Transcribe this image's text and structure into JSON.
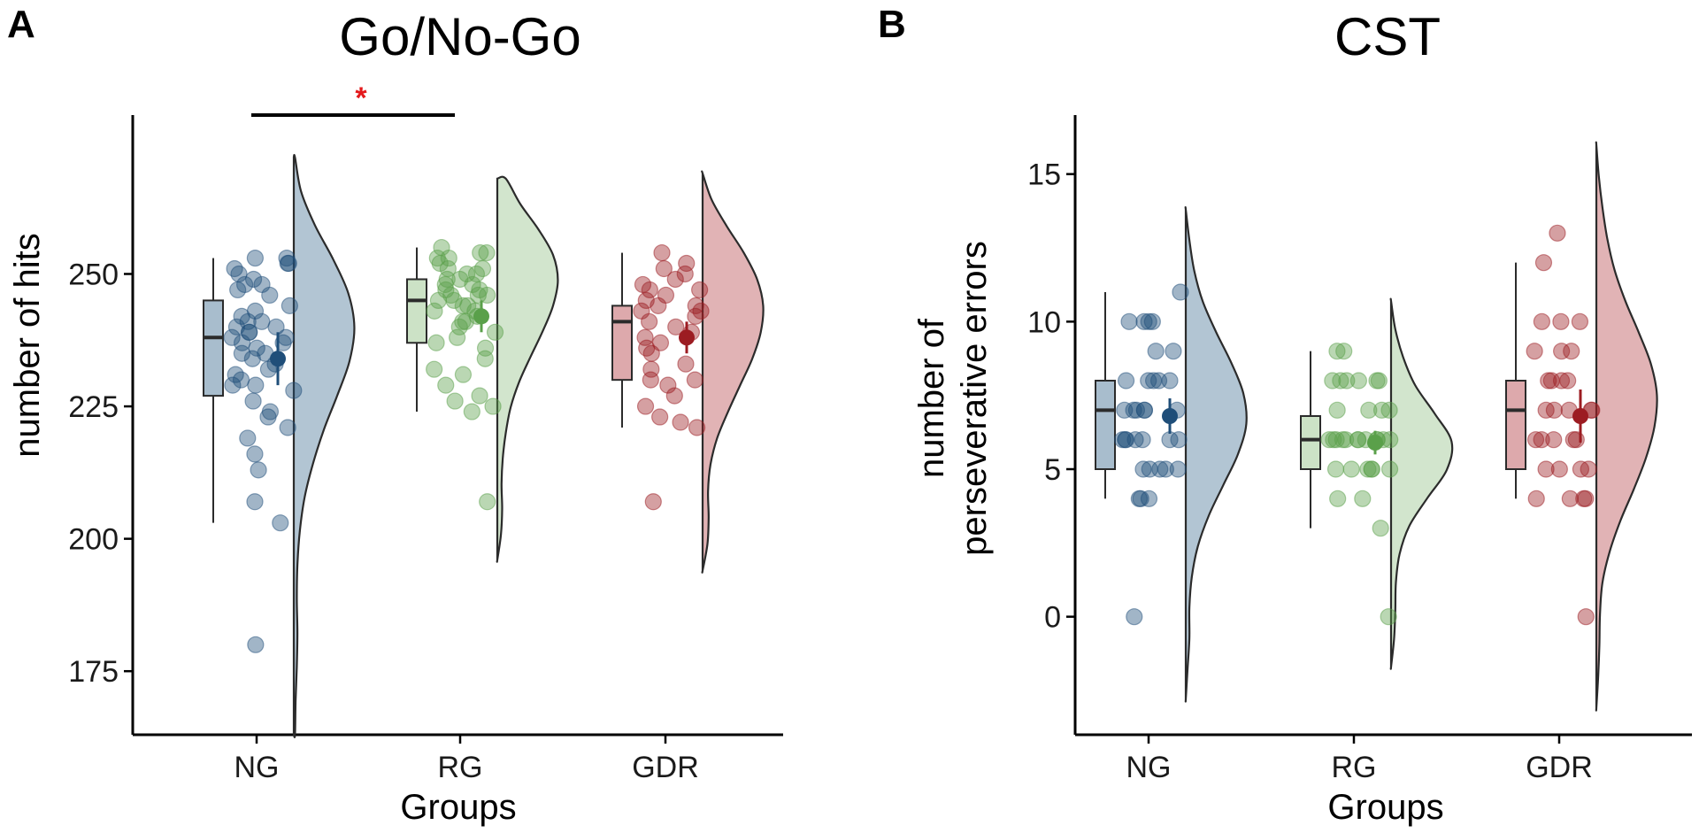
{
  "figure": {
    "panels": [
      {
        "letter": "A",
        "title": "Go/No-Go",
        "ylabel": "number of hits",
        "xlabel": "Groups"
      },
      {
        "letter": "B",
        "title": "CST",
        "ylabel_line1": "number of",
        "ylabel_line2": "perseverative errors",
        "xlabel": "Groups"
      }
    ],
    "significance_marker": "*",
    "colors": {
      "NG": "#1f4e79",
      "RG": "#5aa04a",
      "GDR": "#9c1c22",
      "NG_fill": "#9fb6c8",
      "RG_fill": "#c7dfc0",
      "GDR_fill": "#d9a0a3",
      "significance": "#e41a1c"
    }
  },
  "chart_data": [
    {
      "type": "raincloud",
      "title": "Go/No-Go",
      "xlabel": "Groups",
      "ylabel": "number of hits",
      "categories": [
        "NG",
        "RG",
        "GDR"
      ],
      "ylim": [
        163,
        280
      ],
      "yticks": [
        175,
        200,
        225,
        250
      ],
      "significance": {
        "between": [
          "NG",
          "RG"
        ],
        "label": "*"
      },
      "groups": [
        {
          "name": "NG",
          "box": {
            "min": 203,
            "q1": 227,
            "median": 238,
            "q3": 245,
            "max": 253
          },
          "mean": 234,
          "ci": [
            229,
            239
          ],
          "points": [
            253,
            252,
            251,
            253,
            252,
            250,
            249,
            248,
            246,
            248,
            247,
            244,
            243,
            242,
            241,
            241,
            240,
            240,
            239,
            239,
            238,
            238,
            237,
            237,
            236,
            235,
            235,
            234,
            233,
            232,
            231,
            230,
            229,
            229,
            228,
            226,
            224,
            223,
            221,
            219,
            216,
            213,
            207,
            203,
            180
          ],
          "density_range": [
            163,
            272
          ],
          "density": [
            0.02,
            0.03,
            0.05,
            0.06,
            0.05,
            0.06,
            0.1,
            0.18,
            0.32,
            0.5,
            0.72,
            0.92,
            1.0,
            0.9,
            0.65,
            0.35,
            0.12,
            0.02
          ]
        },
        {
          "name": "RG",
          "box": {
            "min": 224,
            "q1": 237,
            "median": 245,
            "q3": 249,
            "max": 255
          },
          "mean": 242,
          "ci": [
            239,
            245
          ],
          "points": [
            255,
            254,
            254,
            253,
            253,
            252,
            251,
            251,
            250,
            250,
            249,
            249,
            248,
            248,
            247,
            247,
            246,
            246,
            246,
            245,
            245,
            244,
            244,
            243,
            243,
            242,
            241,
            241,
            240,
            239,
            238,
            237,
            236,
            234,
            232,
            231,
            229,
            227,
            226,
            225,
            224,
            207
          ],
          "density_range": [
            196,
            268
          ],
          "density": [
            0.0,
            0.06,
            0.08,
            0.07,
            0.09,
            0.14,
            0.22,
            0.36,
            0.55,
            0.75,
            0.92,
            1.0,
            0.92,
            0.68,
            0.38,
            0.14
          ]
        },
        {
          "name": "GDR",
          "box": {
            "min": 221,
            "q1": 230,
            "median": 241,
            "q3": 244,
            "max": 254
          },
          "mean": 238,
          "ci": [
            235,
            241
          ],
          "points": [
            254,
            252,
            251,
            250,
            249,
            248,
            247,
            247,
            246,
            245,
            244,
            244,
            243,
            243,
            242,
            241,
            240,
            239,
            238,
            237,
            236,
            235,
            233,
            232,
            230,
            230,
            229,
            227,
            225,
            223,
            222,
            221,
            207
          ],
          "density_range": [
            194,
            269
          ],
          "density": [
            0.0,
            0.08,
            0.1,
            0.09,
            0.13,
            0.24,
            0.42,
            0.62,
            0.82,
            0.96,
            1.0,
            0.9,
            0.68,
            0.4,
            0.15,
            0.0
          ]
        }
      ]
    },
    {
      "type": "raincloud",
      "title": "CST",
      "xlabel": "Groups",
      "ylabel": "number of perseverative errors",
      "categories": [
        "NG",
        "RG",
        "GDR"
      ],
      "ylim": [
        -4,
        17
      ],
      "yticks": [
        0,
        5,
        10,
        15
      ],
      "groups": [
        {
          "name": "NG",
          "box": {
            "min": 4,
            "q1": 5,
            "median": 7,
            "q3": 8,
            "max": 11
          },
          "mean": 6.8,
          "ci": [
            6.2,
            7.4
          ],
          "points": [
            11,
            10,
            10,
            10,
            10,
            9,
            9,
            8,
            8,
            8,
            8,
            8,
            7,
            7,
            7,
            7,
            7,
            7,
            6,
            6,
            6,
            6,
            6,
            6,
            6,
            5,
            5,
            5,
            5,
            5,
            4,
            4,
            4,
            0
          ],
          "density_range": [
            -2.8,
            13.8
          ],
          "density": [
            0.0,
            0.03,
            0.06,
            0.06,
            0.1,
            0.2,
            0.38,
            0.62,
            0.86,
            1.0,
            0.95,
            0.75,
            0.5,
            0.28,
            0.14,
            0.06,
            0.0
          ]
        },
        {
          "name": "RG",
          "box": {
            "min": 3,
            "q1": 5,
            "median": 6,
            "q3": 6.8,
            "max": 9
          },
          "mean": 5.9,
          "ci": [
            5.5,
            6.3
          ],
          "points": [
            9,
            9,
            8,
            8,
            8,
            8,
            8,
            8,
            7,
            7,
            7,
            7,
            6,
            6,
            6,
            6,
            6,
            6,
            6,
            6,
            6,
            6,
            6,
            6,
            5,
            5,
            5,
            5,
            5,
            5,
            4,
            4,
            3,
            0
          ],
          "density_range": [
            -1.7,
            10.7
          ],
          "density": [
            0.0,
            0.05,
            0.07,
            0.08,
            0.14,
            0.3,
            0.6,
            0.92,
            1.0,
            0.72,
            0.4,
            0.2,
            0.07,
            0.0
          ]
        },
        {
          "name": "GDR",
          "box": {
            "min": 4,
            "q1": 5,
            "median": 7,
            "q3": 8,
            "max": 12
          },
          "mean": 6.8,
          "ci": [
            5.9,
            7.7
          ],
          "points": [
            13,
            12,
            10,
            10,
            10,
            9,
            9,
            9,
            8,
            8,
            8,
            8,
            7,
            7,
            7,
            7,
            7,
            6,
            6,
            6,
            6,
            6,
            5,
            5,
            5,
            5,
            4,
            4,
            4,
            4,
            0
          ],
          "density_range": [
            -3.1,
            16.0
          ],
          "density": [
            0.0,
            0.03,
            0.05,
            0.06,
            0.1,
            0.22,
            0.4,
            0.62,
            0.82,
            0.96,
            1.0,
            0.9,
            0.7,
            0.48,
            0.3,
            0.18,
            0.1,
            0.04,
            0.0
          ]
        }
      ]
    }
  ]
}
